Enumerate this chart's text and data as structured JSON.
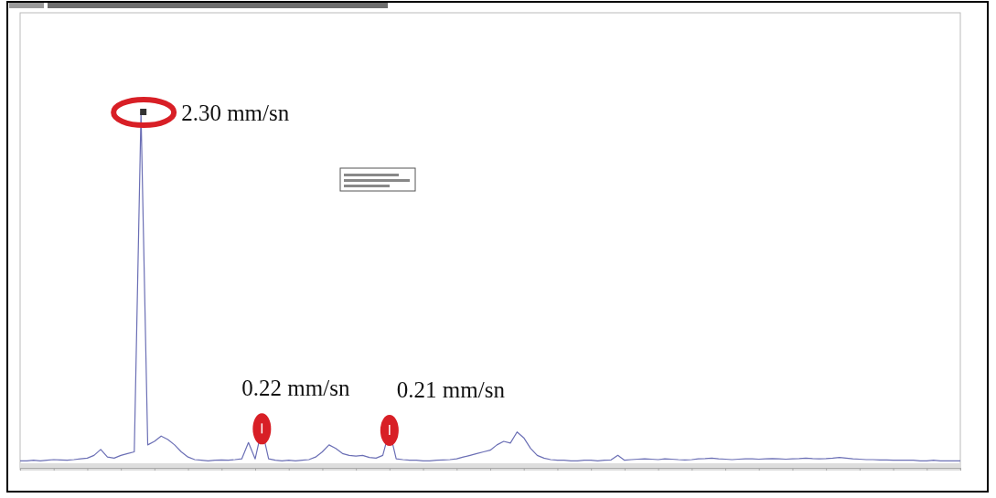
{
  "chart_data": {
    "type": "line",
    "line_style": "solid",
    "categories": [
      null,
      null,
      null,
      null,
      null,
      null,
      null,
      null,
      null,
      null,
      null,
      null,
      null,
      null,
      null,
      null,
      null,
      null,
      null,
      null,
      null,
      null,
      null,
      null,
      null,
      null,
      null,
      null,
      null,
      null,
      null,
      null,
      null,
      null,
      null,
      null,
      null,
      null,
      null,
      null,
      null,
      null,
      null,
      null,
      null,
      null,
      null,
      null,
      null,
      null,
      null,
      null,
      null,
      null,
      null,
      null,
      null,
      null,
      null,
      null,
      null,
      null,
      null,
      null,
      null,
      null,
      null,
      null,
      null,
      null,
      null,
      null,
      null,
      null,
      null,
      null,
      null,
      null,
      null,
      null,
      null,
      null,
      null,
      null,
      null,
      null,
      null,
      null,
      null,
      null,
      null,
      null,
      null,
      null,
      null,
      null,
      null,
      null,
      null,
      null,
      null,
      null,
      null,
      null,
      null,
      null,
      null,
      null,
      null,
      null,
      null,
      null,
      null,
      null,
      null,
      null,
      null,
      null,
      null,
      null,
      null,
      null,
      null,
      null,
      null,
      null,
      null,
      null,
      null,
      null,
      null,
      null,
      null,
      null,
      null,
      null,
      null,
      null,
      null,
      null,
      null
    ],
    "series": [
      {
        "color": "#6b6fb5",
        "values": [
          0.01,
          0.01,
          0.014,
          0.01,
          0.014,
          0.018,
          0.016,
          0.014,
          0.018,
          0.023,
          0.028,
          0.046,
          0.085,
          0.035,
          0.028,
          0.046,
          0.058,
          0.069,
          2.3,
          0.115,
          0.138,
          0.173,
          0.15,
          0.115,
          0.069,
          0.035,
          0.018,
          0.014,
          0.01,
          0.014,
          0.016,
          0.014,
          0.018,
          0.023,
          0.13,
          0.023,
          0.22,
          0.023,
          0.014,
          0.01,
          0.014,
          0.01,
          0.014,
          0.018,
          0.035,
          0.069,
          0.115,
          0.092,
          0.058,
          0.046,
          0.041,
          0.046,
          0.032,
          0.028,
          0.046,
          0.21,
          0.023,
          0.018,
          0.014,
          0.014,
          0.01,
          0.01,
          0.014,
          0.016,
          0.018,
          0.023,
          0.035,
          0.046,
          0.058,
          0.069,
          0.08,
          0.115,
          0.138,
          0.127,
          0.2,
          0.161,
          0.092,
          0.046,
          0.028,
          0.018,
          0.014,
          0.014,
          0.01,
          0.01,
          0.014,
          0.014,
          0.01,
          0.014,
          0.016,
          0.046,
          0.014,
          0.018,
          0.021,
          0.023,
          0.021,
          0.018,
          0.023,
          0.021,
          0.018,
          0.016,
          0.018,
          0.023,
          0.025,
          0.028,
          0.023,
          0.021,
          0.018,
          0.021,
          0.023,
          0.023,
          0.021,
          0.023,
          0.025,
          0.023,
          0.021,
          0.023,
          0.025,
          0.028,
          0.025,
          0.023,
          0.025,
          0.028,
          0.032,
          0.028,
          0.023,
          0.021,
          0.018,
          0.018,
          0.016,
          0.016,
          0.014,
          0.014,
          0.014,
          0.014,
          0.01,
          0.01,
          0.014,
          0.01,
          0.01,
          0.01,
          0.01
        ],
        "value_labels": [
          null,
          null,
          null,
          null,
          null,
          null,
          null,
          null,
          null,
          null,
          null,
          null,
          null,
          null,
          null,
          null,
          null,
          null,
          "2.30 mm/sn",
          null,
          null,
          null,
          null,
          null,
          null,
          null,
          null,
          null,
          null,
          null,
          null,
          null,
          null,
          null,
          null,
          null,
          "0.22 mm/sn",
          null,
          null,
          null,
          null,
          null,
          null,
          null,
          null,
          null,
          null,
          null,
          null,
          null,
          null,
          null,
          null,
          null,
          null,
          "0.21 mm/sn",
          null,
          null,
          null,
          null,
          null,
          null,
          null,
          null,
          null,
          null,
          null,
          null,
          null,
          null,
          null,
          null,
          null,
          null,
          null,
          null,
          null,
          null,
          null,
          null,
          null,
          null,
          null,
          null,
          null,
          null,
          null,
          null,
          null,
          null,
          null,
          null,
          null,
          null,
          null,
          null,
          null,
          null,
          null,
          null,
          null,
          null,
          null,
          null,
          null,
          null,
          null,
          null,
          null,
          null,
          null,
          null,
          null,
          null,
          null,
          null,
          null,
          null,
          null,
          null,
          null,
          null,
          null,
          null,
          null,
          null,
          null,
          null,
          null,
          null,
          null,
          null,
          null,
          null,
          null,
          null,
          null,
          null,
          null,
          null,
          null
        ]
      }
    ]
  }
}
